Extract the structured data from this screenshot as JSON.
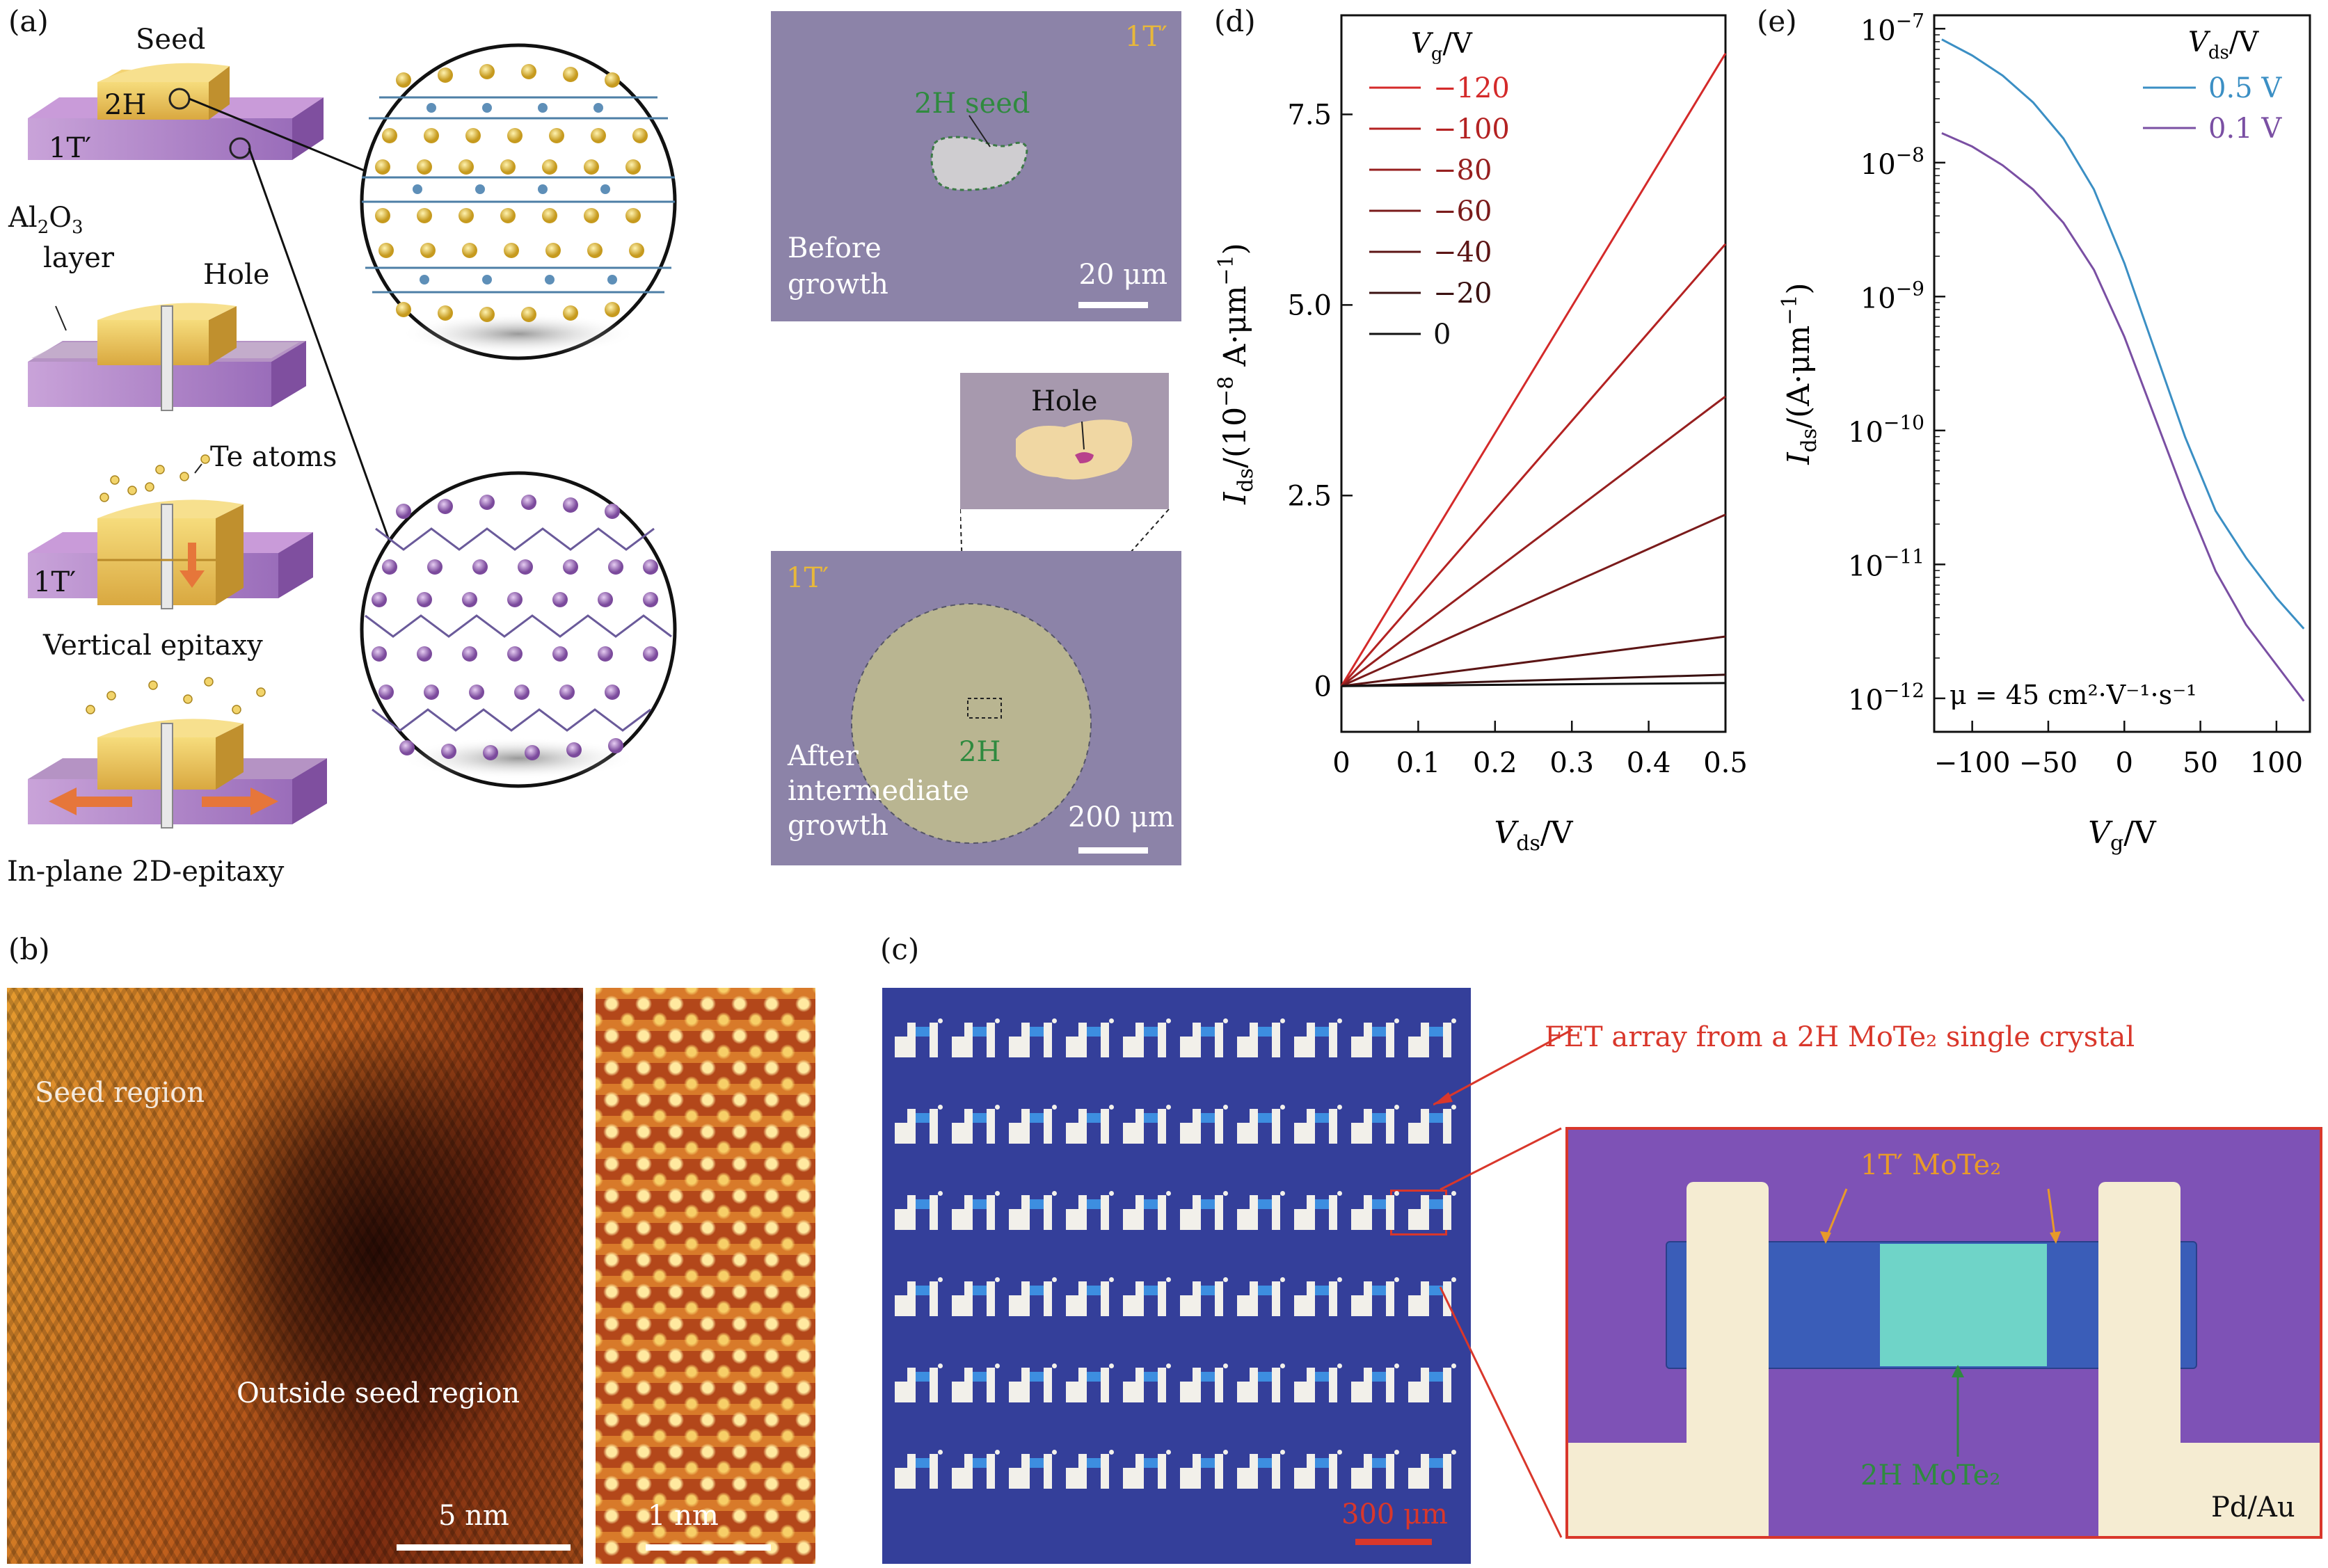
{
  "figure": {
    "panel_a": {
      "label": "(a)",
      "seed_label": "Seed",
      "label_2h": "2H",
      "label_1t": "1T′",
      "al2o3_main": "Al",
      "al2o3_sub1": "2",
      "al2o3_mid": "O",
      "al2o3_sub2": "3",
      "layer_word": "layer",
      "hole_label": "Hole",
      "te_atoms_label": "Te atoms",
      "label_1t_lower": "1T′",
      "vertical_epitaxy": "Vertical epitaxy",
      "inplane_epitaxy": "In-plane 2D-epitaxy",
      "micro_top": {
        "tag_1t": "1T′",
        "seed_label": "2H seed",
        "caption_line1": "Before",
        "caption_line2": "growth",
        "scale": "20 μm"
      },
      "inset_hole": "Hole",
      "micro_bottom": {
        "tag_1t": "1T′",
        "label_2h": "2H",
        "caption_line1": "After",
        "caption_line2": "intermediate",
        "caption_line3": "growth",
        "scale": "200 μm"
      }
    },
    "panel_b": {
      "label": "(b)",
      "seed_region": "Seed region",
      "outside_region": "Outside seed region",
      "scale_left": "5 nm",
      "scale_right": "1 nm"
    },
    "panel_c": {
      "label": "(c)",
      "array_caption": "FET array from a 2H MoTe₂ single crystal",
      "scale": "300 μm",
      "label_1t": "1T′ MoTe₂",
      "label_2h": "2H MoTe₂",
      "contact": "Pd/Au"
    },
    "colors": {
      "panel_c_red": "#d9372b",
      "series_blue": "#3b8fc4",
      "series_purple": "#7a4fa3",
      "yellow_tag": "#e8b83a",
      "green_label": "#2f8a3f"
    }
  },
  "chart_data": [
    {
      "id": "d",
      "panel_label": "(d)",
      "type": "line",
      "xlabel": "V_ds/V",
      "ylabel": "I_ds/(10^-8 A·μm^-1)",
      "xlim": [
        0,
        0.5
      ],
      "ylim": [
        -0.6,
        8.8
      ],
      "xticks": [
        0,
        0.1,
        0.2,
        0.3,
        0.4,
        0.5
      ],
      "xtick_labels": [
        "0",
        "0.1",
        "0.2",
        "0.3",
        "0.4",
        "0.5"
      ],
      "yticks": [
        0,
        2.5,
        5.0,
        7.5
      ],
      "ytick_labels": [
        "0",
        "2.5",
        "5.0",
        "7.5"
      ],
      "legend_title": "Vg/V",
      "legend_title_main": "V",
      "legend_title_sub": "g",
      "legend_title_unit": "/V",
      "series": [
        {
          "name": "−120",
          "color": "#d42a2a",
          "x": [
            0,
            0.5
          ],
          "y": [
            0,
            8.3
          ]
        },
        {
          "name": "−100",
          "color": "#b42222",
          "x": [
            0,
            0.5
          ],
          "y": [
            0,
            5.8
          ]
        },
        {
          "name": "−80",
          "color": "#961f1f",
          "x": [
            0,
            0.5
          ],
          "y": [
            0,
            3.8
          ]
        },
        {
          "name": "−60",
          "color": "#7a1b1b",
          "x": [
            0,
            0.5
          ],
          "y": [
            0,
            2.25
          ]
        },
        {
          "name": "−40",
          "color": "#5c1515",
          "x": [
            0,
            0.5
          ],
          "y": [
            0,
            0.65
          ]
        },
        {
          "name": "−20",
          "color": "#3a1010",
          "x": [
            0,
            0.5
          ],
          "y": [
            0,
            0.15
          ]
        },
        {
          "name": "0",
          "color": "#111111",
          "x": [
            0,
            0.5
          ],
          "y": [
            0,
            0.04
          ]
        }
      ]
    },
    {
      "id": "e",
      "panel_label": "(e)",
      "type": "line",
      "y_scale": "log",
      "xlabel": "V_g/V",
      "ylabel": "I_ds/(A·μm^-1)",
      "xlim": [
        -125,
        122
      ],
      "ylim_exp": [
        -12.25,
        -6.9
      ],
      "xticks": [
        -100,
        -50,
        0,
        50,
        100
      ],
      "xtick_labels": [
        "−100",
        "−50",
        "0",
        "50",
        "100"
      ],
      "ytick_exps": [
        -12,
        -11,
        -10,
        -9,
        -8,
        -7
      ],
      "ytick_labels": [
        "10",
        "10",
        "10",
        "10",
        "10",
        "10"
      ],
      "ytick_exp_labels": [
        "−12",
        "−11",
        "−10",
        "−9",
        "−8",
        "−7"
      ],
      "legend_title": "Vds/V",
      "legend_title_main": "V",
      "legend_title_sub": "ds",
      "legend_title_unit": "/V",
      "annotation": "μ = 45 cm²·V⁻¹·s⁻¹",
      "series": [
        {
          "name": "0.5 V",
          "color": "#3b8fc4",
          "x": [
            -120,
            -100,
            -80,
            -60,
            -40,
            -20,
            0,
            20,
            40,
            60,
            80,
            100,
            118
          ],
          "log10_y": [
            -7.08,
            -7.2,
            -7.35,
            -7.55,
            -7.82,
            -8.2,
            -8.75,
            -9.4,
            -10.05,
            -10.6,
            -10.95,
            -11.25,
            -11.48
          ]
        },
        {
          "name": "0.1 V",
          "color": "#7a4fa3",
          "x": [
            -120,
            -100,
            -80,
            -60,
            -40,
            -20,
            0,
            20,
            40,
            60,
            80,
            100,
            118
          ],
          "log10_y": [
            -7.78,
            -7.88,
            -8.02,
            -8.2,
            -8.45,
            -8.8,
            -9.3,
            -9.9,
            -10.5,
            -11.05,
            -11.45,
            -11.75,
            -12.02
          ]
        }
      ]
    }
  ]
}
